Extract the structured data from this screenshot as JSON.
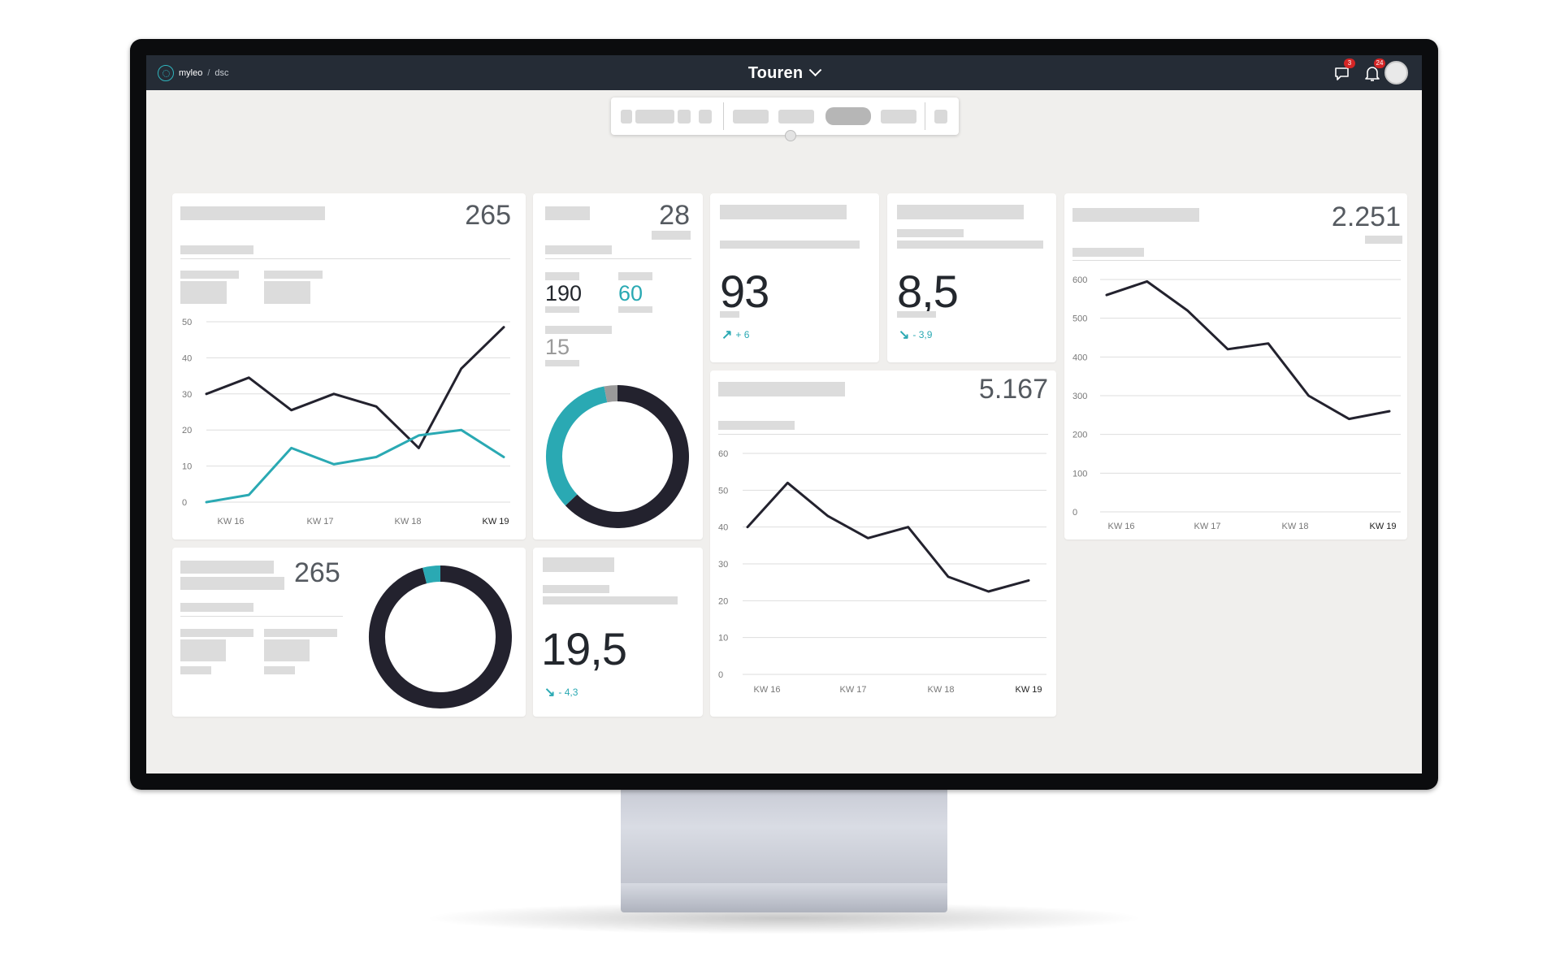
{
  "app": {
    "logo_name": "myleo",
    "logo_separator": "/",
    "logo_sub": "dsc",
    "title": "Touren",
    "messages_badge": "3",
    "notifications_badge": "24"
  },
  "colors": {
    "topbar": "#252c36",
    "accent": "#2aa9b3",
    "dark_series": "#23222e",
    "badge": "#d42525"
  },
  "icons": {
    "logo": "myleo-logo-icon",
    "title_dropdown": "chevron-down-icon",
    "messages": "chat-icon",
    "notifications": "bell-icon",
    "trend_up": "arrow-up-right-icon",
    "trend_down": "arrow-down-right-icon"
  },
  "cards": {
    "card1": {
      "kpi": "265"
    },
    "card2": {
      "kpi": "28",
      "value_a": "190",
      "value_b": "60",
      "value_c": "15"
    },
    "card3": {
      "value": "93",
      "trend": "+ 6",
      "trend_dir": "up"
    },
    "card4": {
      "value": "8,5",
      "trend": "- 3,9",
      "trend_dir": "down"
    },
    "card5": {
      "kpi": "2.251"
    },
    "card6": {
      "kpi": "265"
    },
    "card7": {
      "value": "19,5",
      "trend": "- 4,3",
      "trend_dir": "down"
    },
    "card8": {
      "kpi": "5.167"
    }
  },
  "chart_data": [
    {
      "id": "chart-main-left",
      "type": "line",
      "categories": [
        "KW 16",
        "",
        "KW 17",
        "",
        "KW 18",
        "",
        "KW 19",
        ""
      ],
      "yticks": [
        0,
        10,
        20,
        30,
        40,
        50
      ],
      "ylim": [
        0,
        50
      ],
      "x": [
        0,
        0.5,
        1.4,
        2.4,
        3.2,
        3.85,
        4.5,
        5.5,
        6.5
      ],
      "series": [
        {
          "values": [
            30,
            34.5,
            25.5,
            30,
            26.5,
            15,
            37,
            48.5
          ],
          "x": [
            0,
            0.5,
            1.5,
            2.6,
            3.4,
            4.2,
            5.0,
            6.25
          ],
          "color": "#23222e"
        },
        {
          "values": [
            0,
            2,
            15,
            10.5,
            12.5,
            18.5,
            20,
            12.5
          ],
          "x": [
            0,
            0.5,
            1.5,
            2.6,
            3.4,
            4.2,
            5.0,
            6.25
          ],
          "color": "#2aa9b3"
        }
      ],
      "xticks": [
        "KW 16",
        "KW 17",
        "KW 18",
        "KW 19"
      ]
    },
    {
      "id": "chart-right",
      "type": "line",
      "yticks": [
        0,
        100,
        200,
        300,
        400,
        500,
        600
      ],
      "ylim": [
        0,
        600
      ],
      "xticks": [
        "KW 16",
        "KW 17",
        "KW 18",
        "KW 19"
      ],
      "series": [
        {
          "values": [
            560,
            595,
            520,
            420,
            435,
            300,
            240,
            260
          ],
          "color": "#23222e"
        }
      ]
    },
    {
      "id": "chart-middle",
      "type": "line",
      "yticks": [
        0,
        10,
        20,
        30,
        40,
        50,
        60
      ],
      "ylim": [
        0,
        60
      ],
      "xticks": [
        "KW 16",
        "KW 17",
        "KW 18",
        "KW 19"
      ],
      "series": [
        {
          "values": [
            40,
            52,
            43,
            37,
            40,
            26.5,
            22.5,
            25.5
          ],
          "color": "#23222e"
        }
      ]
    },
    {
      "id": "donut-card2",
      "type": "pie",
      "values": [
        63,
        34,
        3
      ],
      "colors": [
        "#23222e",
        "#2aa9b3",
        "#9a9a9a"
      ]
    },
    {
      "id": "donut-card6",
      "type": "pie",
      "values": [
        96,
        4
      ],
      "colors": [
        "#23222e",
        "#2aa9b3"
      ]
    }
  ]
}
